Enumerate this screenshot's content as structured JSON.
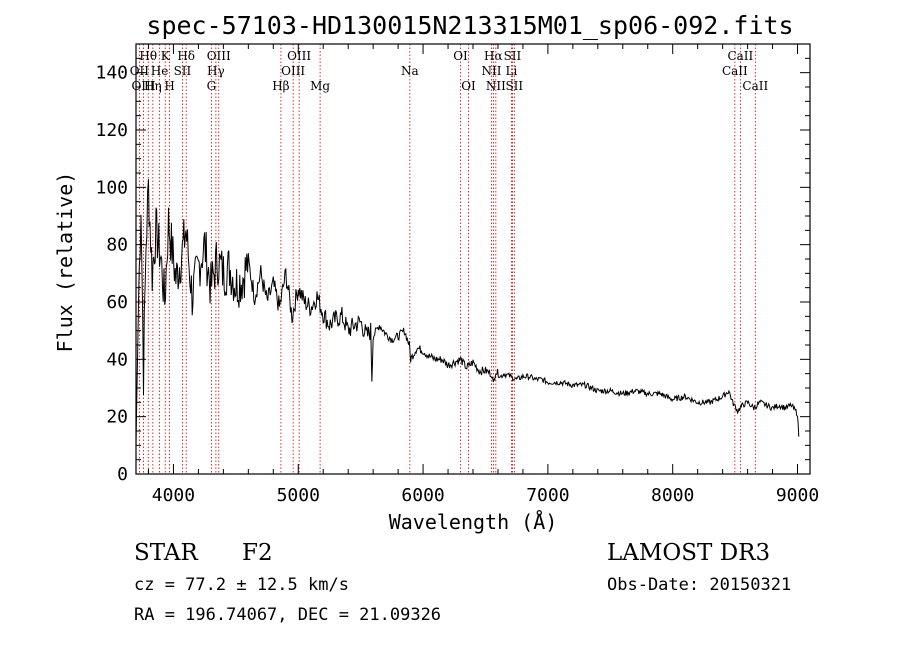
{
  "chart_data": {
    "type": "line",
    "title": "spec-57103-HD130015N213315M01_sp06-092.fits",
    "xlabel": "Wavelength (Å)",
    "ylabel": "Flux (relative)",
    "xlim": [
      3700,
      9100
    ],
    "ylim": [
      0,
      150
    ],
    "xticks": [
      4000,
      5000,
      6000,
      7000,
      8000,
      9000
    ],
    "yticks": [
      0,
      20,
      40,
      60,
      80,
      100,
      120,
      140
    ],
    "grid": false,
    "series": [
      {
        "name": "flux",
        "x": [
          3700,
          3720,
          3740,
          3760,
          3780,
          3800,
          3830,
          3860,
          3900,
          3930,
          3960,
          3990,
          4020,
          4060,
          4100,
          4150,
          4200,
          4250,
          4300,
          4350,
          4400,
          4450,
          4500,
          4550,
          4600,
          4650,
          4700,
          4750,
          4800,
          4850,
          4900,
          4950,
          5000,
          5050,
          5100,
          5150,
          5200,
          5250,
          5300,
          5350,
          5400,
          5450,
          5500,
          5550,
          5580,
          5590,
          5600,
          5650,
          5700,
          5750,
          5800,
          5850,
          5890,
          5900,
          5950,
          6000,
          6050,
          6100,
          6150,
          6200,
          6250,
          6300,
          6350,
          6400,
          6450,
          6500,
          6550,
          6563,
          6580,
          6620,
          6650,
          6700,
          6750,
          6800,
          6850,
          6900,
          6950,
          7000,
          7100,
          7200,
          7300,
          7400,
          7500,
          7600,
          7700,
          7800,
          7900,
          8000,
          8100,
          8200,
          8300,
          8400,
          8450,
          8480,
          8520,
          8560,
          8600,
          8650,
          8700,
          8750,
          8800,
          8850,
          8900,
          8950,
          9000,
          9010
        ],
        "y": [
          10,
          60,
          95,
          35,
          80,
          100,
          70,
          85,
          75,
          60,
          88,
          78,
          68,
          75,
          85,
          62,
          72,
          80,
          65,
          75,
          70,
          72,
          66,
          68,
          74,
          62,
          70,
          60,
          66,
          58,
          70,
          55,
          65,
          60,
          58,
          62,
          56,
          52,
          54,
          55,
          50,
          52,
          53,
          48,
          50,
          34,
          48,
          52,
          49,
          47,
          48,
          50,
          45,
          40,
          44,
          43,
          41,
          40,
          40,
          38,
          39,
          40,
          37,
          39,
          36,
          36,
          35,
          31,
          36,
          34,
          35,
          34,
          33,
          34,
          34,
          33,
          33,
          32,
          32,
          31,
          31,
          29,
          29,
          28,
          29,
          28,
          28,
          26,
          27,
          25,
          25,
          27,
          29,
          25,
          22,
          24,
          25,
          23,
          25,
          24,
          23,
          24,
          23,
          24,
          21,
          13
        ]
      }
    ],
    "lines": [
      {
        "label": "Hθ",
        "x": 3798,
        "row": 0
      },
      {
        "label": "OII",
        "x": 3727,
        "row": 1
      },
      {
        "label": "OIII",
        "x": 3760,
        "row": 2
      },
      {
        "label": "K",
        "x": 3934,
        "row": 0
      },
      {
        "label": "He",
        "x": 3889,
        "row": 1
      },
      {
        "label": "Hη",
        "x": 3835,
        "row": 2
      },
      {
        "label": "Hδ",
        "x": 4102,
        "row": 0
      },
      {
        "label": "SII",
        "x": 4072,
        "row": 1
      },
      {
        "label": "H",
        "x": 3969,
        "row": 2
      },
      {
        "label": "OIII",
        "x": 4363,
        "row": 0
      },
      {
        "label": "Hγ",
        "x": 4340,
        "row": 1
      },
      {
        "label": "G",
        "x": 4304,
        "row": 2
      },
      {
        "label": "OIII",
        "x": 5007,
        "row": 0
      },
      {
        "label": "OIII",
        "x": 4959,
        "row": 1
      },
      {
        "label": "Hβ",
        "x": 4861,
        "row": 2
      },
      {
        "label": "Mg",
        "x": 5175,
        "row": 2
      },
      {
        "label": "Na",
        "x": 5894,
        "row": 1
      },
      {
        "label": "OI",
        "x": 6300,
        "row": 0
      },
      {
        "label": "OI",
        "x": 6364,
        "row": 2
      },
      {
        "label": "Hα",
        "x": 6563,
        "row": 0
      },
      {
        "label": "SII",
        "x": 6716,
        "row": 0
      },
      {
        "label": "NII",
        "x": 6548,
        "row": 1
      },
      {
        "label": "Li",
        "x": 6708,
        "row": 1
      },
      {
        "label": "NII",
        "x": 6583,
        "row": 2
      },
      {
        "label": "SII",
        "x": 6731,
        "row": 2
      },
      {
        "label": "CaII",
        "x": 8542,
        "row": 0
      },
      {
        "label": "CaII",
        "x": 8498,
        "row": 1
      },
      {
        "label": "CaII",
        "x": 8662,
        "row": 2
      }
    ]
  },
  "info": {
    "class": "STAR",
    "subclass": "F2",
    "survey": "LAMOST DR3",
    "cz": "cz = 77.2 ± 12.5 km/s",
    "obs_date": "Obs-Date: 20150321",
    "coords": "RA = 196.74067, DEC =  21.09326"
  },
  "colors": {
    "spectrum": "#000000",
    "line_marker": "#cc0000",
    "axes": "#000000"
  }
}
